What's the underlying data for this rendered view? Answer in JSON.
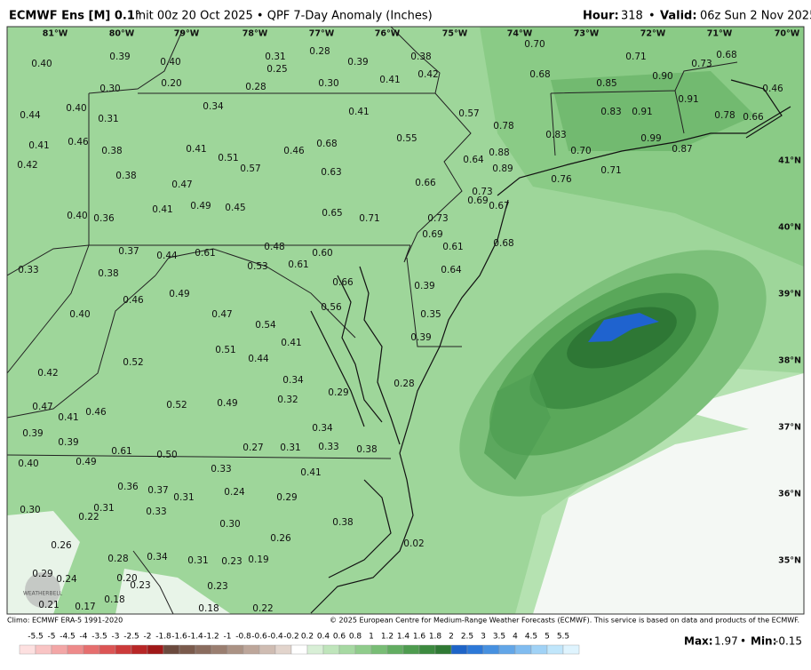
{
  "header": {
    "model": "ECMWF Ens [M] 0.1°",
    "info": "Init 00z 20 Oct 2025 • QPF 7-Day Anomaly (Inches)",
    "hour_label": "Hour:",
    "hour": "318",
    "sep": "•",
    "valid_label": "Valid:",
    "valid": "06z Sun 2 Nov 2025"
  },
  "map": {
    "lon_labels": [
      "81°W",
      "80°W",
      "79°W",
      "78°W",
      "77°W",
      "76°W",
      "75°W",
      "74°W",
      "73°W",
      "72°W",
      "71°W",
      "70°W"
    ],
    "lat_labels": [
      "41°N",
      "40°N",
      "39°N",
      "38°N",
      "37°N",
      "36°N",
      "35°N"
    ],
    "logo": "WEATHERBELL",
    "values": [
      "0.40",
      "0.39",
      "0.40",
      "0.31",
      "0.25",
      "0.28",
      "0.39",
      "0.38",
      "0.42",
      "0.20",
      "0.28",
      "0.30",
      "0.41",
      "0.30",
      "0.70",
      "0.71",
      "0.73",
      "0.68",
      "0.68",
      "0.90",
      "0.85",
      "0.46",
      "0.44",
      "0.40",
      "0.31",
      "0.34",
      "0.41",
      "0.57",
      "0.78",
      "0.83",
      "0.91",
      "0.91",
      "0.78",
      "0.66",
      "0.41",
      "0.46",
      "0.38",
      "0.41",
      "0.51",
      "0.46",
      "0.68",
      "0.55",
      "0.83",
      "0.70",
      "0.99",
      "0.87",
      "0.88",
      "0.64",
      "0.89",
      "0.42",
      "0.57",
      "0.63",
      "0.38",
      "0.47",
      "0.66",
      "0.71",
      "0.76",
      "0.73",
      "0.69",
      "0.67",
      "0.36",
      "0.40",
      "0.41",
      "0.49",
      "0.45",
      "0.65",
      "0.71",
      "0.73",
      "0.69",
      "0.61",
      "0.68",
      "0.37",
      "0.44",
      "0.61",
      "0.48",
      "0.60",
      "0.53",
      "0.61",
      "0.64",
      "0.33",
      "0.38",
      "0.66",
      "0.39",
      "0.49",
      "0.46",
      "0.40",
      "0.47",
      "0.54",
      "0.56",
      "0.35",
      "0.41",
      "0.39",
      "0.51",
      "0.44",
      "0.52",
      "0.42",
      "0.34",
      "0.32",
      "0.29",
      "0.28",
      "0.47",
      "0.41",
      "0.46",
      "0.52",
      "0.49",
      "0.34",
      "0.39",
      "0.39",
      "0.61",
      "0.50",
      "0.27",
      "0.31",
      "0.33",
      "0.38",
      "0.40",
      "0.49",
      "0.33",
      "0.41",
      "0.36",
      "0.37",
      "0.31",
      "0.24",
      "0.29",
      "0.30",
      "0.31",
      "0.22",
      "0.33",
      "0.30",
      "0.38",
      "0.26",
      "0.02",
      "0.26",
      "0.28",
      "0.34",
      "0.31",
      "0.23",
      "0.19",
      "0.29",
      "0.24",
      "0.20",
      "0.23",
      "0.23",
      "0.18",
      "0.21",
      "0.17",
      "0.18",
      "0.22"
    ]
  },
  "colorbar": {
    "labels": [
      "-5.5",
      "-5",
      "-4.5",
      "-4",
      "-3.5",
      "-3",
      "-2.5",
      "-2",
      "-1.8",
      "-1.6",
      "-1.4",
      "-1.2",
      "-1",
      "-0.8",
      "-0.6",
      "-0.4",
      "-0.2",
      "0.2",
      "0.4",
      "0.6",
      "0.8",
      "1",
      "1.2",
      "1.4",
      "1.6",
      "1.8",
      "2",
      "2.5",
      "3",
      "3.5",
      "4",
      "4.5",
      "5",
      "5.5"
    ],
    "colors": [
      "#fde0e0",
      "#f9c4c4",
      "#f3a6a6",
      "#ee8a8a",
      "#e66e6e",
      "#dc5454",
      "#cc3a3a",
      "#b82626",
      "#a01818",
      "#6b4a3e",
      "#7a5a4c",
      "#8a6c5e",
      "#9a7e70",
      "#ab9284",
      "#bda69a",
      "#cfbcb2",
      "#e2d4cc",
      "#ffffff",
      "#d8efd6",
      "#bfe5bb",
      "#a6d9a2",
      "#8fcc8b",
      "#78bd75",
      "#62ad61",
      "#4e9c4f",
      "#3c8a3f",
      "#2f7934",
      "#1e64c8",
      "#2c78d8",
      "#4690e0",
      "#62a6e8",
      "#80bcf0",
      "#a0d2f6",
      "#c0e6fb",
      "#dff4fe"
    ]
  },
  "footer": {
    "climo": "Climo: ECMWF ERA-5 1991-2020",
    "copyright": "© 2025 European Centre for Medium-Range Weather Forecasts (ECMWF). This service is based on data and products of the ECMWF.",
    "max_label": "Max:",
    "max": "1.97",
    "sep": "•",
    "min_label": "Min:",
    "min": "-0.15"
  }
}
